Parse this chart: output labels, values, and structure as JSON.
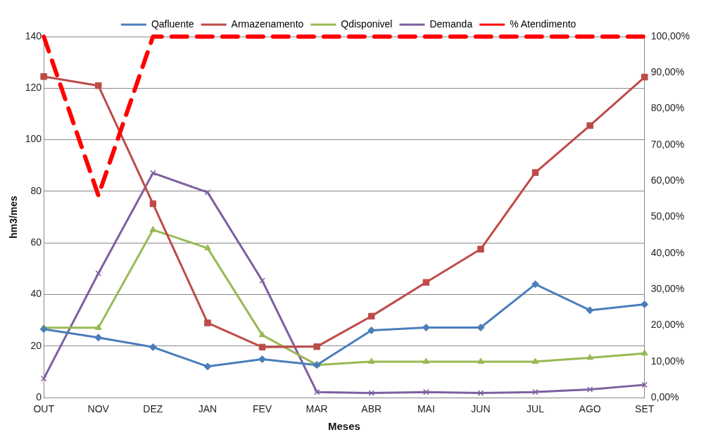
{
  "chart_data": {
    "type": "line",
    "xlabel": "Meses",
    "ylabel": "hm3/mes",
    "categories": [
      "OUT",
      "NOV",
      "DEZ",
      "JAN",
      "FEV",
      "MAR",
      "ABR",
      "MAI",
      "JUN",
      "JUL",
      "AGO",
      "SET"
    ],
    "series": [
      {
        "name": "Qafluente",
        "color": "#4a7ebb",
        "marker": "diamond",
        "values": [
          26.6,
          23.3,
          19.6,
          12.1,
          14.9,
          12.7,
          26.1,
          27.2,
          27.2,
          44.0,
          33.9,
          36.2
        ]
      },
      {
        "name": "Armazenamento",
        "color": "#be4b48",
        "marker": "square",
        "values": [
          124.5,
          121,
          75.2,
          29.0,
          19.6,
          19.8,
          31.6,
          44.7,
          57.6,
          87.3,
          105.5,
          124.3
        ]
      },
      {
        "name": "Qdisponivel",
        "color": "#98b954",
        "marker": "triangle",
        "values": [
          27.1,
          27.1,
          65.1,
          58.0,
          24.3,
          12.7,
          14.0,
          14.0,
          14.0,
          14.0,
          15.5,
          17.2
        ]
      },
      {
        "name": "Demanda",
        "color": "#7d60a0",
        "marker": "cross",
        "values": [
          7.4,
          48.2,
          87.1,
          79.6,
          45.4,
          2.2,
          1.8,
          2.2,
          1.8,
          2.2,
          3.2,
          5.0
        ]
      },
      {
        "name": "% Atendimento",
        "color": "#ff0000",
        "marker": "none",
        "line_style": "dashed",
        "axis": "y2",
        "values": [
          100,
          56,
          100,
          100,
          100,
          100,
          100,
          100,
          100,
          100,
          100,
          100
        ]
      }
    ],
    "ylim": [
      0,
      140
    ],
    "yticks": [
      0,
      20,
      40,
      60,
      80,
      100,
      120,
      140
    ],
    "y2lim": [
      0,
      100
    ],
    "y2ticks": [
      {
        "value": 0,
        "label": "0,00%"
      },
      {
        "value": 10,
        "label": "10,00%"
      },
      {
        "value": 20,
        "label": "20,00%"
      },
      {
        "value": 30,
        "label": "30,00%"
      },
      {
        "value": 40,
        "label": "40,00%"
      },
      {
        "value": 50,
        "label": "50,00%"
      },
      {
        "value": 60,
        "label": "60,00%"
      },
      {
        "value": 70,
        "label": "70,00%"
      },
      {
        "value": 80,
        "label": "80,00%"
      },
      {
        "value": 90,
        "label": "90,00%"
      },
      {
        "value": 100,
        "label": "100,00%"
      }
    ],
    "grid": "y",
    "legend": "top"
  }
}
